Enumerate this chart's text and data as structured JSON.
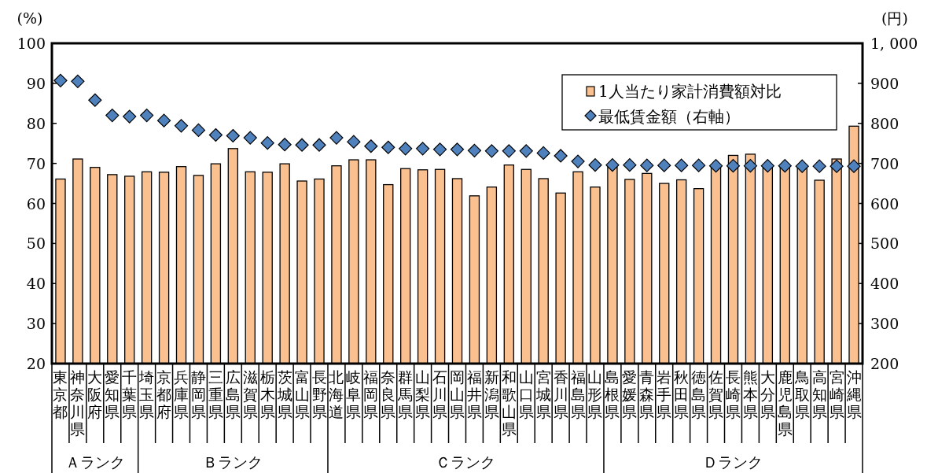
{
  "chart_data": {
    "type": "bar",
    "ylabel": "(%)",
    "y2label": "(円)",
    "categories": [
      "東京都",
      "神奈川県",
      "大阪府",
      "愛知県",
      "千葉県",
      "埼玉県",
      "京都府",
      "兵庫県",
      "静岡県",
      "三重県",
      "広島県",
      "滋賀県",
      "栃木県",
      "茨城県",
      "富山県",
      "長野県",
      "北海道",
      "岐阜県",
      "福岡県",
      "奈良県",
      "群馬県",
      "山梨県",
      "石川県",
      "岡山県",
      "福井県",
      "新潟県",
      "和歌山県",
      "山口県",
      "宮城県",
      "香川県",
      "福島県",
      "山形県",
      "島根県",
      "愛媛県",
      "青森県",
      "岩手県",
      "秋田県",
      "徳島県",
      "佐賀県",
      "長崎県",
      "熊本県",
      "大分県",
      "鹿児島県",
      "鳥取県",
      "高知県",
      "宮崎県",
      "沖縄県"
    ],
    "ylim": [
      20,
      100
    ],
    "yticks": [
      20,
      30,
      40,
      50,
      60,
      70,
      80,
      90,
      100
    ],
    "y2lim": [
      200,
      1000
    ],
    "y2ticks": [
      200,
      300,
      400,
      500,
      600,
      700,
      800,
      900,
      {
        "value": 1000,
        "label": "1, 000"
      }
    ],
    "legend": "top right",
    "marker": "diamond",
    "annotations": [
      "Ａランク",
      "Ｂランク",
      "Ｃランク",
      "Ｄランク"
    ],
    "series": [
      {
        "name": "1人当たり家計消費額対比",
        "color": "#fac090",
        "values": [
          66.1,
          71.1,
          69.0,
          67.2,
          66.8,
          67.9,
          67.8,
          69.2,
          67.0,
          69.9,
          73.7,
          67.9,
          67.8,
          69.9,
          65.6,
          66.1,
          69.4,
          70.9,
          70.9,
          64.7,
          68.7,
          68.4,
          68.5,
          66.2,
          61.9,
          64.1,
          69.6,
          68.5,
          66.2,
          62.6,
          67.9,
          64.1,
          69.0,
          66.0,
          67.5,
          65.0,
          65.9,
          63.7,
          69.2,
          72.0,
          72.3,
          68.9,
          69.2,
          69.2,
          65.8,
          71.1,
          79.3
        ]
      },
      {
        "name": "最低賃金額（右軸）",
        "type": "scatter",
        "axis": "y2",
        "color": "#4f81bd",
        "values": [
          907,
          905,
          858,
          820,
          817,
          820,
          807,
          794,
          783,
          771,
          769,
          764,
          751,
          747,
          746,
          746,
          764,
          754,
          743,
          740,
          737,
          737,
          735,
          735,
          732,
          731,
          731,
          731,
          726,
          719,
          705,
          696,
          696,
          696,
          695,
          695,
          695,
          695,
          694,
          694,
          694,
          694,
          694,
          693,
          693,
          693,
          693
        ]
      }
    ]
  }
}
